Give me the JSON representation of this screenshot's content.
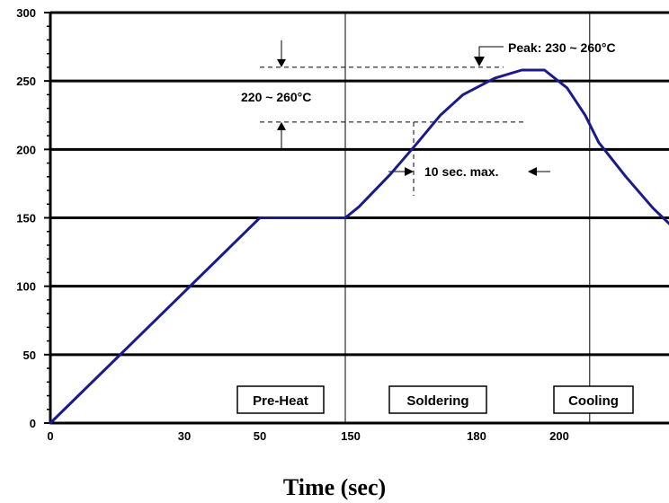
{
  "chart_data": {
    "type": "line",
    "title": "",
    "xlabel": "Time (sec)",
    "ylabel": "",
    "ylim": [
      0,
      300
    ],
    "grid": "horizontal major lines",
    "y_ticks": [
      "0",
      "50",
      "100",
      "150",
      "200",
      "250",
      "300"
    ],
    "x_tick_labels": [
      "0",
      "30",
      "50",
      "150",
      "180",
      "200"
    ],
    "x_axis_note": "piecewise axis: 0–50 then 150–200 (tick labels as printed)",
    "series": [
      {
        "color": "#1a1a8c",
        "points": [
          {
            "x": 0,
            "y": 0
          },
          {
            "x": 50,
            "y": 150
          },
          {
            "x": 150,
            "y": 150
          },
          {
            "x": 153,
            "y": 158
          },
          {
            "x": 160,
            "y": 182
          },
          {
            "x": 166,
            "y": 205
          },
          {
            "x": 171,
            "y": 225
          },
          {
            "x": 176,
            "y": 240
          },
          {
            "x": 183,
            "y": 252
          },
          {
            "x": 189,
            "y": 258
          },
          {
            "x": 194,
            "y": 258
          },
          {
            "x": 199,
            "y": 245
          },
          {
            "x": 203,
            "y": 225
          },
          {
            "x": 206,
            "y": 205
          },
          {
            "x": 212,
            "y": 180
          },
          {
            "x": 218,
            "y": 157
          },
          {
            "x": 224,
            "y": 138
          },
          {
            "x": 228,
            "y": 127
          }
        ]
      }
    ],
    "phase_dividers_x": [
      150,
      204
    ],
    "phases": [
      "Pre-Heat",
      "Soldering",
      "Cooling"
    ],
    "annotations": {
      "peak": "Peak:  230 ~ 260°C",
      "range": "220 ~ 260°C",
      "duration": "10 sec. max.",
      "dashed_levels": [
        260,
        220
      ],
      "duration_window_x": [
        175,
        204
      ]
    }
  }
}
